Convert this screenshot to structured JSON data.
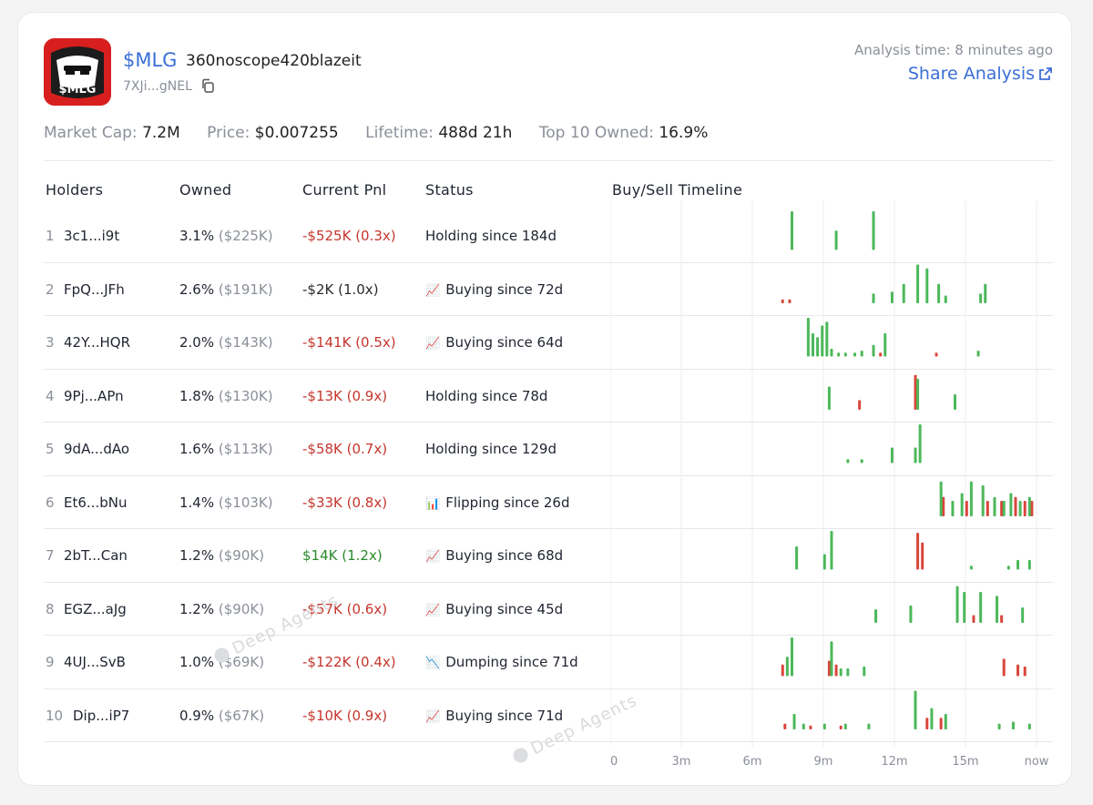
{
  "token": {
    "symbol": "$MLG",
    "name": "360noscope420blazeit",
    "address": "7XJi...gNEL",
    "logo_text": "$MLG"
  },
  "header": {
    "analysis_time": "Analysis time: 8 minutes ago",
    "share_label": "Share Analysis"
  },
  "stats": [
    {
      "label": "Market Cap:",
      "value": "7.2M"
    },
    {
      "label": "Price:",
      "value": "$0.007255"
    },
    {
      "label": "Lifetime:",
      "value": "488d 21h"
    },
    {
      "label": "Top 10 Owned:",
      "value": "16.9%"
    }
  ],
  "columns": [
    "Holders",
    "Owned",
    "Current Pnl",
    "Status",
    "Buy/Sell Timeline"
  ],
  "holders": [
    {
      "rank": "1",
      "address": "3c1...i9t",
      "owned_pct": "3.1%",
      "owned_usd": "($225K)",
      "pnl": "-$525K (0.3x)",
      "pnl_tone": "neg",
      "status_icon": "",
      "status": "Holding since 184d"
    },
    {
      "rank": "2",
      "address": "FpQ...JFh",
      "owned_pct": "2.6%",
      "owned_usd": "($191K)",
      "pnl": "-$2K (1.0x)",
      "pnl_tone": "neu",
      "status_icon": "📈",
      "status": "Buying since 72d"
    },
    {
      "rank": "3",
      "address": "42Y...HQR",
      "owned_pct": "2.0%",
      "owned_usd": "($143K)",
      "pnl": "-$141K (0.5x)",
      "pnl_tone": "neg",
      "status_icon": "📈",
      "status": "Buying since 64d"
    },
    {
      "rank": "4",
      "address": "9Pj...APn",
      "owned_pct": "1.8%",
      "owned_usd": "($130K)",
      "pnl": "-$13K (0.9x)",
      "pnl_tone": "neg",
      "status_icon": "",
      "status": "Holding since 78d"
    },
    {
      "rank": "5",
      "address": "9dA...dAo",
      "owned_pct": "1.6%",
      "owned_usd": "($113K)",
      "pnl": "-$58K (0.7x)",
      "pnl_tone": "neg",
      "status_icon": "",
      "status": "Holding since 129d"
    },
    {
      "rank": "6",
      "address": "Et6...bNu",
      "owned_pct": "1.4%",
      "owned_usd": "($103K)",
      "pnl": "-$33K (0.8x)",
      "pnl_tone": "neg",
      "status_icon": "📊",
      "status": "Flipping since 26d"
    },
    {
      "rank": "7",
      "address": "2bT...Can",
      "owned_pct": "1.2%",
      "owned_usd": "($90K)",
      "pnl": "$14K (1.2x)",
      "pnl_tone": "pos",
      "status_icon": "📈",
      "status": "Buying since 68d"
    },
    {
      "rank": "8",
      "address": "EGZ...aJg",
      "owned_pct": "1.2%",
      "owned_usd": "($90K)",
      "pnl": "-$57K (0.6x)",
      "pnl_tone": "neg",
      "status_icon": "📈",
      "status": "Buying since 45d"
    },
    {
      "rank": "9",
      "address": "4UJ...SvB",
      "owned_pct": "1.0%",
      "owned_usd": "($69K)",
      "pnl": "-$122K (0.4x)",
      "pnl_tone": "neg",
      "status_icon": "📉",
      "status": "Dumping since 71d"
    },
    {
      "rank": "10",
      "address": "Dip...iP7",
      "owned_pct": "0.9%",
      "owned_usd": "($67K)",
      "pnl": "-$10K (0.9x)",
      "pnl_tone": "neg",
      "status_icon": "📈",
      "status": "Buying since 71d"
    }
  ],
  "colors": {
    "buy": "#4cb85a",
    "sell": "#d9463b",
    "accent": "#3a6fd8",
    "negative": "#c5362d",
    "positive": "#2a8a2a"
  },
  "watermark": "Deep Agents",
  "chart_data": {
    "type": "bar",
    "x_ticks": [
      "0",
      "3m",
      "6m",
      "9m",
      "12m",
      "15m",
      "now"
    ],
    "xlabel": "",
    "ylabel": "",
    "grid": true,
    "series": [
      {
        "holder": "3c1...i9t",
        "buys": [
          [
            7.8,
            1.0
          ],
          [
            9.7,
            0.5
          ],
          [
            11.3,
            1.0
          ]
        ],
        "sells": []
      },
      {
        "holder": "FpQ...JFh",
        "buys": [
          [
            11.3,
            0.25
          ],
          [
            12.1,
            0.3
          ],
          [
            12.6,
            0.5
          ],
          [
            13.2,
            1.0
          ],
          [
            13.6,
            0.9
          ],
          [
            14.1,
            0.5
          ],
          [
            14.4,
            0.2
          ],
          [
            15.9,
            0.25
          ],
          [
            16.1,
            0.5
          ]
        ],
        "sells": [
          [
            7.4,
            0.1
          ],
          [
            7.7,
            0.1
          ]
        ]
      },
      {
        "holder": "42Y...HQR",
        "buys": [
          [
            8.5,
            1.0
          ],
          [
            8.7,
            0.6
          ],
          [
            8.9,
            0.5
          ],
          [
            9.1,
            0.8
          ],
          [
            9.3,
            0.9
          ],
          [
            9.5,
            0.2
          ],
          [
            9.8,
            0.1
          ],
          [
            10.1,
            0.1
          ],
          [
            10.5,
            0.1
          ],
          [
            10.8,
            0.15
          ],
          [
            11.3,
            0.3
          ],
          [
            11.8,
            0.6
          ],
          [
            15.8,
            0.15
          ]
        ],
        "sells": [
          [
            11.6,
            0.1
          ],
          [
            14.0,
            0.1
          ]
        ]
      },
      {
        "holder": "9Pj...APn",
        "buys": [
          [
            9.4,
            0.6
          ],
          [
            13.2,
            0.8
          ],
          [
            14.8,
            0.4
          ]
        ],
        "sells": [
          [
            10.7,
            0.25
          ],
          [
            13.1,
            0.9
          ]
        ]
      },
      {
        "holder": "9dA...dAo",
        "buys": [
          [
            10.2,
            0.1
          ],
          [
            10.8,
            0.1
          ],
          [
            12.1,
            0.4
          ],
          [
            13.1,
            0.4
          ],
          [
            13.3,
            1.0
          ]
        ],
        "sells": []
      },
      {
        "holder": "Et6...bNu",
        "buys": [
          [
            14.2,
            0.9
          ],
          [
            14.7,
            0.4
          ],
          [
            15.1,
            0.6
          ],
          [
            15.5,
            0.9
          ],
          [
            16.0,
            0.8
          ],
          [
            16.5,
            0.5
          ],
          [
            16.9,
            0.4
          ],
          [
            17.2,
            0.6
          ],
          [
            17.6,
            0.4
          ],
          [
            18.0,
            0.5
          ]
        ],
        "sells": [
          [
            14.3,
            0.5
          ],
          [
            15.3,
            0.4
          ],
          [
            16.2,
            0.4
          ],
          [
            16.8,
            0.4
          ],
          [
            17.4,
            0.5
          ],
          [
            17.8,
            0.4
          ],
          [
            18.1,
            0.4
          ]
        ]
      },
      {
        "holder": "2bT...Can",
        "buys": [
          [
            8.0,
            0.6
          ],
          [
            9.2,
            0.4
          ],
          [
            9.5,
            1.0
          ],
          [
            15.5,
            0.1
          ],
          [
            17.1,
            0.1
          ],
          [
            17.5,
            0.25
          ],
          [
            18.0,
            0.25
          ]
        ],
        "sells": [
          [
            13.2,
            0.95
          ],
          [
            13.4,
            0.7
          ]
        ]
      },
      {
        "holder": "EGZ...aJg",
        "buys": [
          [
            11.4,
            0.35
          ],
          [
            12.9,
            0.45
          ],
          [
            14.9,
            0.95
          ],
          [
            15.2,
            0.8
          ],
          [
            15.9,
            0.8
          ],
          [
            16.6,
            0.7
          ],
          [
            17.7,
            0.4
          ]
        ],
        "sells": [
          [
            15.6,
            0.2
          ],
          [
            16.8,
            0.2
          ]
        ]
      },
      {
        "holder": "4UJ...SvB",
        "buys": [
          [
            7.6,
            0.5
          ],
          [
            7.8,
            1.0
          ],
          [
            9.5,
            0.9
          ],
          [
            9.9,
            0.2
          ],
          [
            10.2,
            0.2
          ],
          [
            10.9,
            0.25
          ]
        ],
        "sells": [
          [
            7.4,
            0.3
          ],
          [
            9.4,
            0.4
          ],
          [
            9.7,
            0.3
          ],
          [
            16.9,
            0.45
          ],
          [
            17.5,
            0.3
          ],
          [
            17.8,
            0.25
          ]
        ]
      },
      {
        "holder": "Dip...iP7",
        "buys": [
          [
            7.9,
            0.4
          ],
          [
            8.3,
            0.15
          ],
          [
            9.2,
            0.15
          ],
          [
            10.1,
            0.15
          ],
          [
            11.1,
            0.15
          ],
          [
            13.1,
            1.0
          ],
          [
            13.8,
            0.55
          ],
          [
            14.4,
            0.4
          ],
          [
            16.7,
            0.15
          ],
          [
            17.3,
            0.2
          ],
          [
            18.0,
            0.15
          ]
        ],
        "sells": [
          [
            7.5,
            0.15
          ],
          [
            8.6,
            0.1
          ],
          [
            9.9,
            0.1
          ],
          [
            13.6,
            0.3
          ],
          [
            14.2,
            0.3
          ]
        ]
      }
    ],
    "x_max": 18.3
  }
}
